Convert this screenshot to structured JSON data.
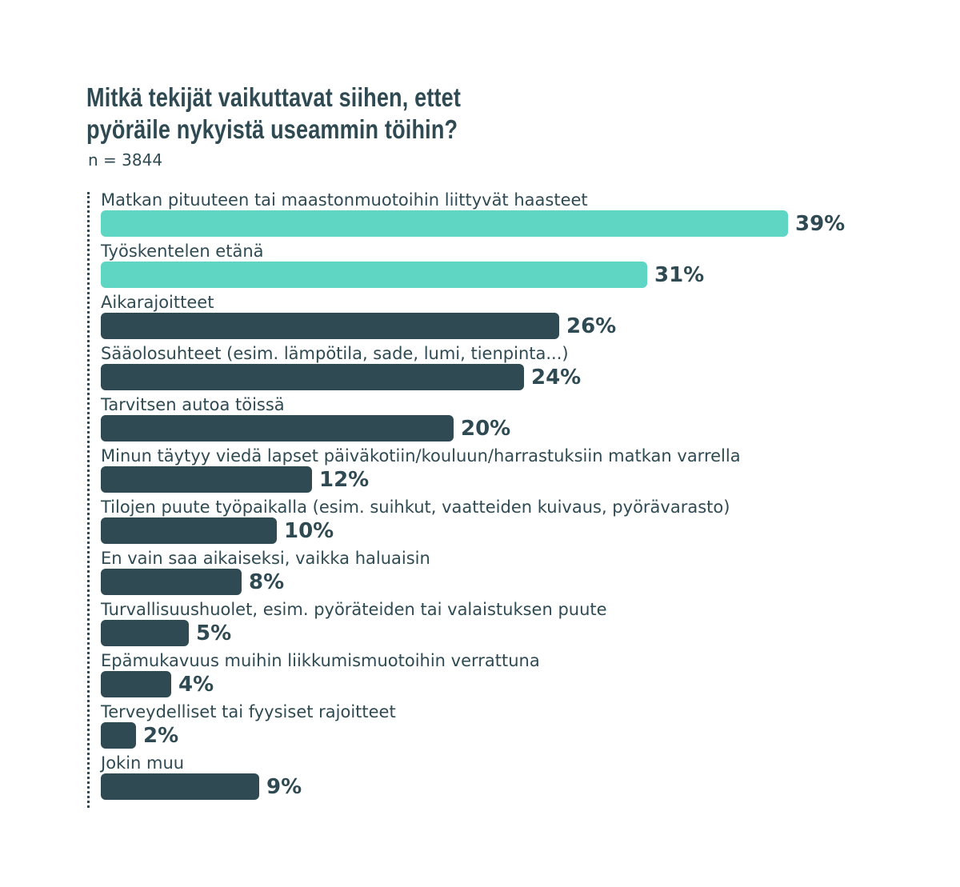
{
  "title_line1": "Mitkä tekijät vaikuttavat siihen, ettet",
  "title_line2": "pyöräile nykyistä useammin töihin?",
  "subtitle": "n = 3844",
  "colors": {
    "highlight": "#5fd6c4",
    "default": "#2f4a52",
    "text": "#2f4a52"
  },
  "chart_data": {
    "type": "bar",
    "orientation": "horizontal",
    "categories": [
      "Matkan pituuteen tai maastonmuotoihin liittyvät haasteet",
      "Työskentelen etänä",
      "Aikarajoitteet",
      "Sääolosuhteet (esim. lämpötila, sade, lumi, tienpinta...)",
      "Tarvitsen autoa töissä",
      "Minun täytyy viedä lapset päiväkotiin/kouluun/harrastuksiin matkan varrella",
      "Tilojen puute työpaikalla (esim. suihkut, vaatteiden kuivaus, pyörävarasto)",
      "En vain saa aikaiseksi, vaikka haluaisin",
      "Turvallisuushuolet, esim. pyöräteiden tai valaistuksen puute",
      "Epämukavuus muihin liikkumismuotoihin verrattuna",
      "Terveydelliset tai fyysiset rajoitteet",
      "Jokin muu"
    ],
    "values": [
      39,
      31,
      26,
      24,
      20,
      12,
      10,
      8,
      5,
      4,
      2,
      9
    ],
    "value_labels": [
      "39%",
      "31%",
      "26%",
      "24%",
      "20%",
      "12%",
      "10%",
      "8%",
      "5%",
      "4%",
      "2%",
      "9%"
    ],
    "highlighted": [
      true,
      true,
      false,
      false,
      false,
      false,
      false,
      false,
      false,
      false,
      false,
      false
    ],
    "unit": "%",
    "xlim": [
      0,
      39
    ]
  }
}
